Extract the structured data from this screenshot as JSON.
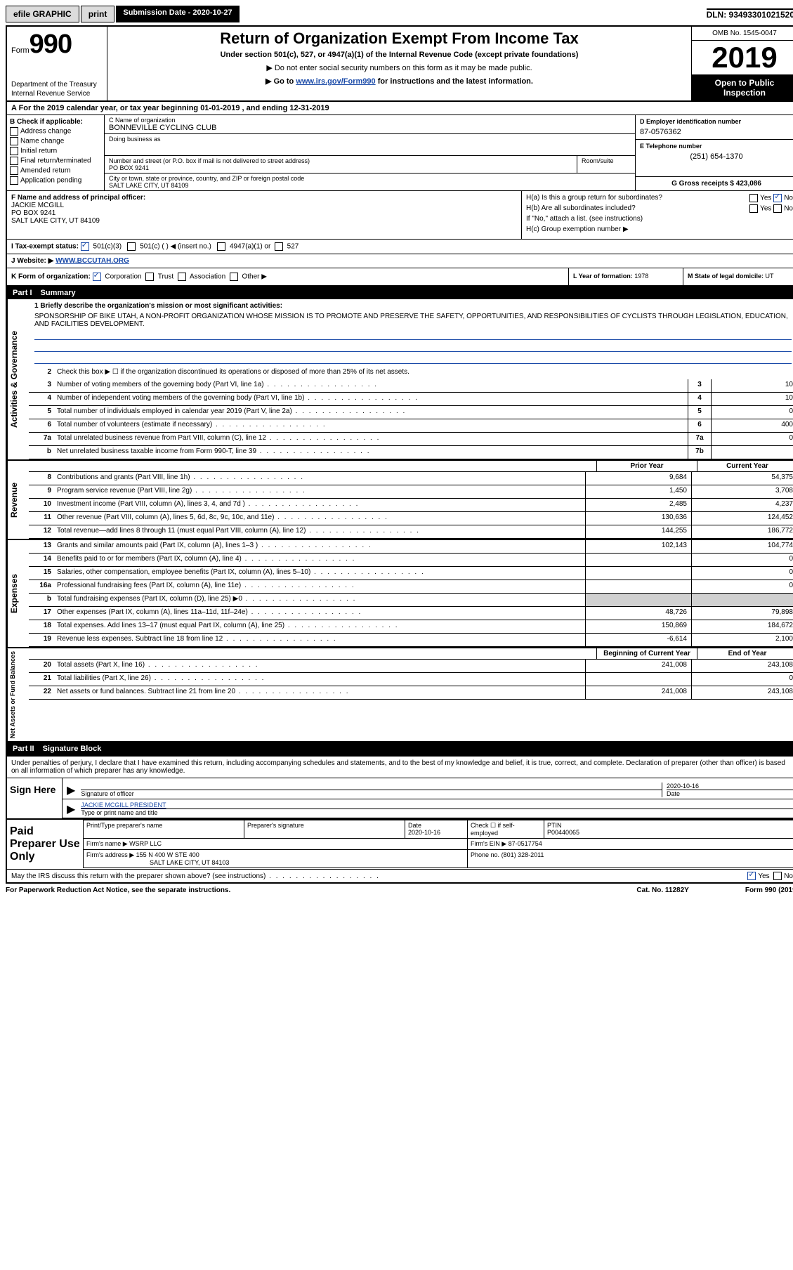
{
  "topbar": {
    "efile": "efile GRAPHIC",
    "print": "print",
    "submission_label": "Submission Date - 2020-10-27",
    "dln": "DLN: 93493301021520"
  },
  "header": {
    "form_word": "Form",
    "form_num": "990",
    "dept": "Department of the Treasury",
    "irs": "Internal Revenue Service",
    "title": "Return of Organization Exempt From Income Tax",
    "sub": "Under section 501(c), 527, or 4947(a)(1) of the Internal Revenue Code (except private foundations)",
    "sub2": "▶ Do not enter social security numbers on this form as it may be made public.",
    "sub3_pre": "▶ Go to ",
    "sub3_link": "www.irs.gov/Form990",
    "sub3_post": " for instructions and the latest information.",
    "omb": "OMB No. 1545-0047",
    "year": "2019",
    "open1": "Open to Public",
    "open2": "Inspection"
  },
  "rowA": "A For the 2019 calendar year, or tax year beginning 01-01-2019   , and ending 12-31-2019",
  "colB": {
    "hdr": "B Check if applicable:",
    "opts": [
      "Address change",
      "Name change",
      "Initial return",
      "Final return/terminated",
      "Amended return",
      "Application pending"
    ]
  },
  "colC": {
    "name_lab": "C Name of organization",
    "name_val": "BONNEVILLE CYCLING CLUB",
    "dba_lab": "Doing business as",
    "addr_lab": "Number and street (or P.O. box if mail is not delivered to street address)",
    "addr_val": "PO BOX 9241",
    "room_lab": "Room/suite",
    "city_lab": "City or town, state or province, country, and ZIP or foreign postal code",
    "city_val": "SALT LAKE CITY, UT  84109"
  },
  "colD": {
    "lab": "D Employer identification number",
    "val": "87-0576362"
  },
  "colE": {
    "lab": "E Telephone number",
    "val": "(251) 654-1370"
  },
  "colG": "G Gross receipts $ 423,086",
  "colF": {
    "lab": "F  Name and address of principal officer:",
    "name": "JACKIE MCGILL",
    "addr": "PO BOX 9241",
    "city": "SALT LAKE CITY, UT  84109"
  },
  "colH": {
    "a": "H(a)  Is this a group return for subordinates?",
    "b": "H(b)  Are all subordinates included?",
    "bnote": "If \"No,\" attach a list. (see instructions)",
    "c": "H(c)  Group exemption number ▶",
    "yes": "Yes",
    "no": "No"
  },
  "rowI": {
    "lab": "I   Tax-exempt status:",
    "o1": "501(c)(3)",
    "o2": "501(c) (  ) ◀ (insert no.)",
    "o3": "4947(a)(1) or",
    "o4": "527"
  },
  "rowJ": {
    "lab": "J   Website: ▶",
    "val": "WWW.BCCUTAH.ORG"
  },
  "rowK": "K Form of organization:",
  "rowK_opts": [
    "Corporation",
    "Trust",
    "Association",
    "Other ▶"
  ],
  "rowL": {
    "lab": "L Year of formation: ",
    "val": "1978"
  },
  "rowM": {
    "lab": "M State of legal domicile: ",
    "val": "UT"
  },
  "part1": {
    "hdr_num": "Part I",
    "hdr_title": "Summary",
    "vlabels": [
      "Activities & Governance",
      "Revenue",
      "Expenses",
      "Net Assets or Fund Balances"
    ],
    "q1_lab": "1  Briefly describe the organization's mission or most significant activities:",
    "q1_txt": "SPONSORSHIP OF BIKE UTAH, A NON-PROFIT ORGANIZATION WHOSE MISSION IS TO PROMOTE AND PRESERVE THE SAFETY, OPPORTUNITIES, AND RESPONSIBILITIES OF CYCLISTS THROUGH LEGISLATION, EDUCATION, AND FACILITIES DEVELOPMENT.",
    "q2": "Check this box ▶ ☐  if the organization discontinued its operations or disposed of more than 25% of its net assets.",
    "lines_gov": [
      {
        "n": "3",
        "d": "Number of voting members of the governing body (Part VI, line 1a)",
        "box": "3",
        "v": "10"
      },
      {
        "n": "4",
        "d": "Number of independent voting members of the governing body (Part VI, line 1b)",
        "box": "4",
        "v": "10"
      },
      {
        "n": "5",
        "d": "Total number of individuals employed in calendar year 2019 (Part V, line 2a)",
        "box": "5",
        "v": "0"
      },
      {
        "n": "6",
        "d": "Total number of volunteers (estimate if necessary)",
        "box": "6",
        "v": "400"
      },
      {
        "n": "7a",
        "d": "Total unrelated business revenue from Part VIII, column (C), line 12",
        "box": "7a",
        "v": "0"
      },
      {
        "n": "b",
        "d": "Net unrelated business taxable income from Form 990-T, line 39",
        "box": "7b",
        "v": ""
      }
    ],
    "yh_prior": "Prior Year",
    "yh_curr": "Current Year",
    "lines_rev": [
      {
        "n": "8",
        "d": "Contributions and grants (Part VIII, line 1h)",
        "p": "9,684",
        "c": "54,375"
      },
      {
        "n": "9",
        "d": "Program service revenue (Part VIII, line 2g)",
        "p": "1,450",
        "c": "3,708"
      },
      {
        "n": "10",
        "d": "Investment income (Part VIII, column (A), lines 3, 4, and 7d )",
        "p": "2,485",
        "c": "4,237"
      },
      {
        "n": "11",
        "d": "Other revenue (Part VIII, column (A), lines 5, 6d, 8c, 9c, 10c, and 11e)",
        "p": "130,636",
        "c": "124,452"
      },
      {
        "n": "12",
        "d": "Total revenue—add lines 8 through 11 (must equal Part VIII, column (A), line 12)",
        "p": "144,255",
        "c": "186,772"
      }
    ],
    "lines_exp": [
      {
        "n": "13",
        "d": "Grants and similar amounts paid (Part IX, column (A), lines 1–3 )",
        "p": "102,143",
        "c": "104,774"
      },
      {
        "n": "14",
        "d": "Benefits paid to or for members (Part IX, column (A), line 4)",
        "p": "",
        "c": "0"
      },
      {
        "n": "15",
        "d": "Salaries, other compensation, employee benefits (Part IX, column (A), lines 5–10)",
        "p": "",
        "c": "0"
      },
      {
        "n": "16a",
        "d": "Professional fundraising fees (Part IX, column (A), line 11e)",
        "p": "",
        "c": "0"
      },
      {
        "n": "b",
        "d": "Total fundraising expenses (Part IX, column (D), line 25) ▶0",
        "p": "grey",
        "c": "grey"
      },
      {
        "n": "17",
        "d": "Other expenses (Part IX, column (A), lines 11a–11d, 11f–24e)",
        "p": "48,726",
        "c": "79,898"
      },
      {
        "n": "18",
        "d": "Total expenses. Add lines 13–17 (must equal Part IX, column (A), line 25)",
        "p": "150,869",
        "c": "184,672"
      },
      {
        "n": "19",
        "d": "Revenue less expenses. Subtract line 18 from line 12",
        "p": "-6,614",
        "c": "2,100"
      }
    ],
    "yh_beg": "Beginning of Current Year",
    "yh_end": "End of Year",
    "lines_net": [
      {
        "n": "20",
        "d": "Total assets (Part X, line 16)",
        "p": "241,008",
        "c": "243,108"
      },
      {
        "n": "21",
        "d": "Total liabilities (Part X, line 26)",
        "p": "",
        "c": "0"
      },
      {
        "n": "22",
        "d": "Net assets or fund balances. Subtract line 21 from line 20",
        "p": "241,008",
        "c": "243,108"
      }
    ]
  },
  "part2": {
    "hdr_num": "Part II",
    "hdr_title": "Signature Block",
    "decl": "Under penalties of perjury, I declare that I have examined this return, including accompanying schedules and statements, and to the best of my knowledge and belief, it is true, correct, and complete. Declaration of preparer (other than officer) is based on all information of which preparer has any knowledge.",
    "sign_here": "Sign Here",
    "sig_officer": "Signature of officer",
    "sig_date": "2020-10-16",
    "sig_date_lab": "Date",
    "sig_name": "JACKIE MCGILL PRESIDENT",
    "sig_name_lab": "Type or print name and title",
    "paid": "Paid Preparer Use Only",
    "prep_name_lab": "Print/Type preparer's name",
    "prep_sig_lab": "Preparer's signature",
    "prep_date_lab": "Date",
    "prep_date": "2020-10-16",
    "prep_check": "Check ☐ if self-employed",
    "prep_ptin_lab": "PTIN",
    "prep_ptin": "P00440065",
    "firm_name_lab": "Firm's name    ▶",
    "firm_name": "WSRP LLC",
    "firm_ein_lab": "Firm's EIN ▶",
    "firm_ein": "87-0517754",
    "firm_addr_lab": "Firm's address ▶",
    "firm_addr": "155 N 400 W STE 400",
    "firm_city": "SALT LAKE CITY, UT  84103",
    "firm_phone_lab": "Phone no.",
    "firm_phone": "(801) 328-2011",
    "discuss": "May the IRS discuss this return with the preparer shown above? (see instructions)",
    "yes": "Yes",
    "no": "No"
  },
  "footer": {
    "paperwork": "For Paperwork Reduction Act Notice, see the separate instructions.",
    "cat": "Cat. No. 11282Y",
    "form": "Form 990 (2019)"
  }
}
